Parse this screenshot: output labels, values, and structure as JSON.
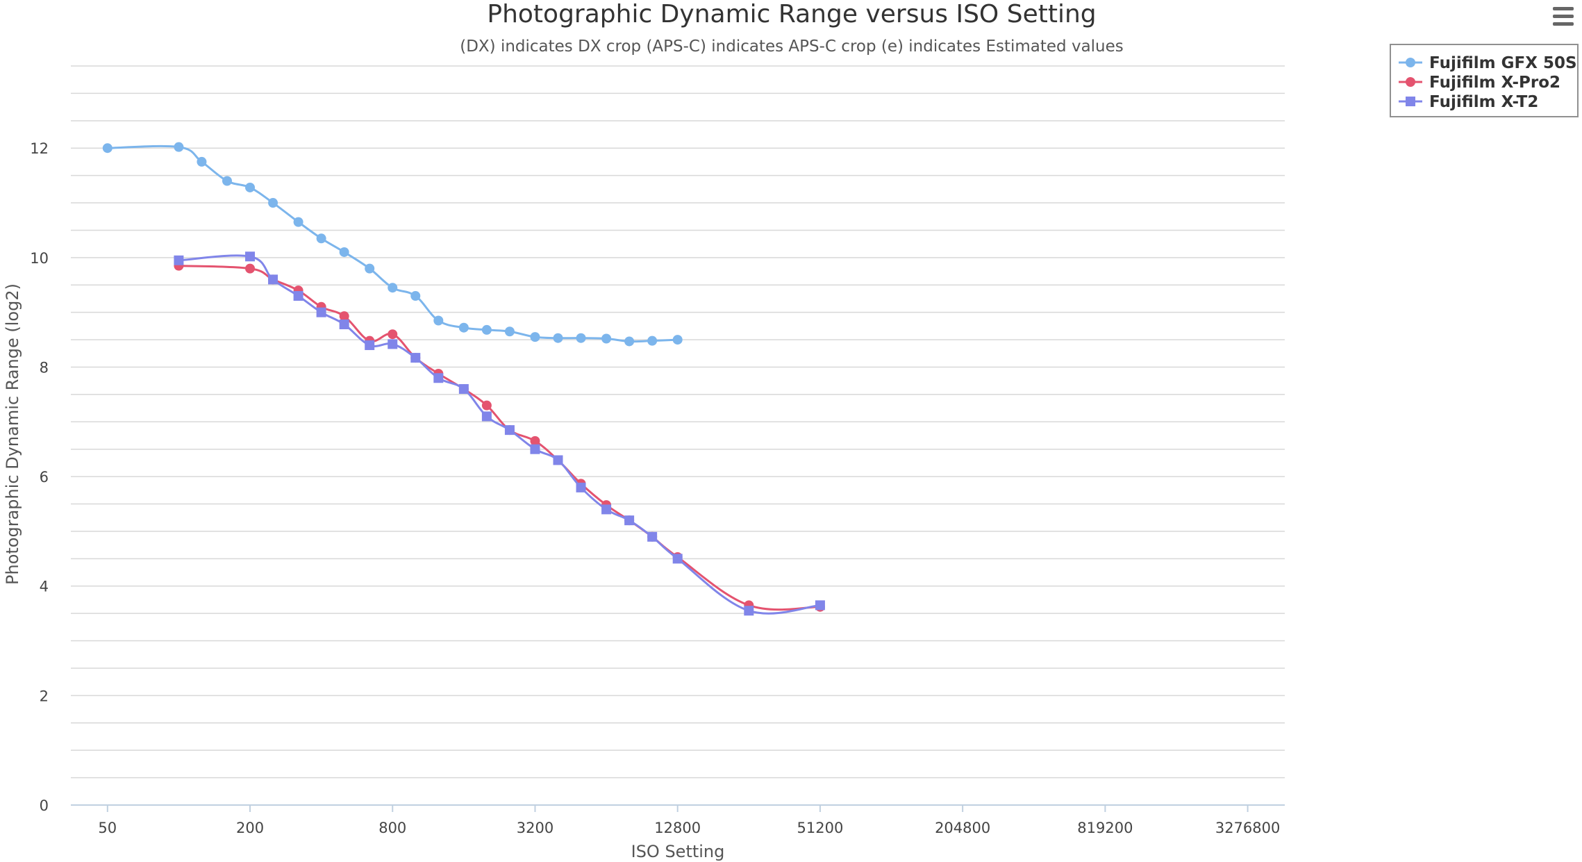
{
  "chart_data": {
    "type": "line",
    "title": "Photographic Dynamic Range versus ISO Setting",
    "subtitle": "(DX) indicates DX crop (APS-C) indicates APS-C crop (e) indicates Estimated values",
    "xlabel": "ISO Setting",
    "ylabel": "Photographic Dynamic Range (log2)",
    "x_scale": "log2",
    "x_ticks": [
      50,
      200,
      800,
      3200,
      12800,
      51200,
      204800,
      819200,
      3276800
    ],
    "x_tick_labels": [
      "50",
      "200",
      "800",
      "3200",
      "12800",
      "51200",
      "204800",
      "819200",
      "3276800"
    ],
    "xlim": [
      35,
      4700000
    ],
    "ylim": [
      0,
      13.5
    ],
    "y_ticks": [
      0,
      2,
      4,
      6,
      8,
      10,
      12
    ],
    "y_tick_labels": [
      "0",
      "2",
      "4",
      "6",
      "8",
      "10",
      "12"
    ],
    "grid": true,
    "legend_position": "top-right",
    "series": [
      {
        "name": "Fujifilm GFX 50S",
        "color": "#7cb5ec",
        "marker": "circle",
        "points": [
          [
            50,
            12.0
          ],
          [
            100,
            12.02
          ],
          [
            125,
            11.75
          ],
          [
            160,
            11.4
          ],
          [
            200,
            11.28
          ],
          [
            250,
            11.0
          ],
          [
            320,
            10.65
          ],
          [
            400,
            10.35
          ],
          [
            500,
            10.1
          ],
          [
            640,
            9.8
          ],
          [
            800,
            9.45
          ],
          [
            1000,
            9.3
          ],
          [
            1250,
            8.85
          ],
          [
            1600,
            8.72
          ],
          [
            2000,
            8.68
          ],
          [
            2500,
            8.65
          ],
          [
            3200,
            8.55
          ],
          [
            4000,
            8.53
          ],
          [
            5000,
            8.53
          ],
          [
            6400,
            8.52
          ],
          [
            8000,
            8.47
          ],
          [
            10000,
            8.48
          ],
          [
            12800,
            8.5
          ]
        ]
      },
      {
        "name": "Fujifilm X-Pro2",
        "color": "#e4536f",
        "marker": "circle",
        "points": [
          [
            100,
            9.85
          ],
          [
            200,
            9.8
          ],
          [
            250,
            9.6
          ],
          [
            320,
            9.4
          ],
          [
            400,
            9.1
          ],
          [
            500,
            8.93
          ],
          [
            640,
            8.48
          ],
          [
            800,
            8.6
          ],
          [
            1000,
            8.17
          ],
          [
            1250,
            7.88
          ],
          [
            1600,
            7.6
          ],
          [
            2000,
            7.3
          ],
          [
            2500,
            6.85
          ],
          [
            3200,
            6.65
          ],
          [
            4000,
            6.3
          ],
          [
            5000,
            5.87
          ],
          [
            6400,
            5.48
          ],
          [
            8000,
            5.2
          ],
          [
            10000,
            4.9
          ],
          [
            12800,
            4.53
          ],
          [
            25600,
            3.65
          ],
          [
            51200,
            3.62
          ]
        ]
      },
      {
        "name": "Fujifilm X-T2",
        "color": "#8085e9",
        "marker": "square",
        "points": [
          [
            100,
            9.95
          ],
          [
            200,
            10.02
          ],
          [
            250,
            9.6
          ],
          [
            320,
            9.3
          ],
          [
            400,
            9.0
          ],
          [
            500,
            8.78
          ],
          [
            640,
            8.4
          ],
          [
            800,
            8.42
          ],
          [
            1000,
            8.17
          ],
          [
            1250,
            7.8
          ],
          [
            1600,
            7.6
          ],
          [
            2000,
            7.1
          ],
          [
            2500,
            6.85
          ],
          [
            3200,
            6.5
          ],
          [
            4000,
            6.3
          ],
          [
            5000,
            5.8
          ],
          [
            6400,
            5.4
          ],
          [
            8000,
            5.2
          ],
          [
            10000,
            4.9
          ],
          [
            12800,
            4.5
          ],
          [
            25600,
            3.55
          ],
          [
            51200,
            3.65
          ]
        ]
      }
    ]
  }
}
